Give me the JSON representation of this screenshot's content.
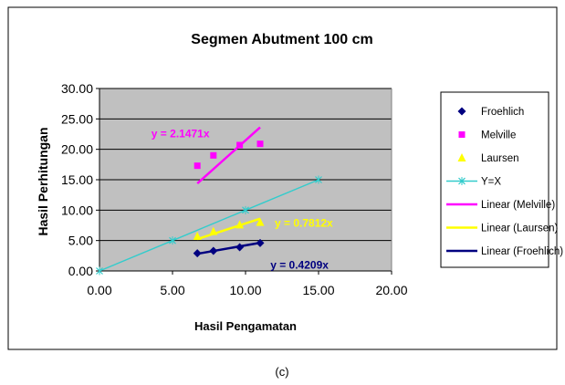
{
  "chart_data": {
    "type": "scatter",
    "title": "Segmen Abutment 100 cm",
    "xlabel": "Hasil Pengamatan",
    "ylabel": "Hasil Perhitungan",
    "xlim": [
      0,
      20
    ],
    "ylim": [
      0,
      30
    ],
    "x_ticks": [
      "0.00",
      "5.00",
      "10.00",
      "15.00",
      "20.00"
    ],
    "y_ticks": [
      "0.00",
      "5.00",
      "10.00",
      "15.00",
      "20.00",
      "25.00",
      "30.00"
    ],
    "grid": true,
    "legend_position": "right",
    "caption": "(c)",
    "colors": {
      "plot_background": "#c0c0c0",
      "froehlich": "#000080",
      "melville": "#ff00ff",
      "laursen": "#ffff00",
      "yx": "#33cccc"
    },
    "series": [
      {
        "name": "Froehlich",
        "kind": "points",
        "marker": "diamond",
        "color": "#000080",
        "x": [
          6.7,
          7.8,
          9.6,
          11.0
        ],
        "y": [
          2.9,
          3.3,
          3.9,
          4.6
        ]
      },
      {
        "name": "Melville",
        "kind": "points",
        "marker": "square",
        "color": "#ff00ff",
        "x": [
          6.7,
          7.8,
          9.6,
          11.0
        ],
        "y": [
          17.3,
          19.0,
          20.7,
          20.9
        ]
      },
      {
        "name": "Laursen",
        "kind": "points",
        "marker": "triangle",
        "color": "#ffff00",
        "x": [
          6.7,
          7.8,
          9.6,
          11.0
        ],
        "y": [
          5.7,
          6.5,
          7.6,
          8.0
        ]
      },
      {
        "name": "Y=X",
        "kind": "line",
        "marker": "x",
        "color": "#33cccc",
        "x": [
          0,
          5,
          10,
          15
        ],
        "y": [
          0,
          5,
          10,
          15
        ]
      },
      {
        "name": "Linear (Melville)",
        "kind": "trend",
        "slope": 2.1471,
        "color": "#ff00ff",
        "x_range": [
          6.7,
          11.0
        ]
      },
      {
        "name": "Linear (Laursen)",
        "kind": "trend",
        "slope": 0.7812,
        "color": "#ffff00",
        "x_range": [
          6.7,
          11.0
        ]
      },
      {
        "name": "Linear (Froehlich)",
        "kind": "trend",
        "slope": 0.4209,
        "color": "#000080",
        "x_range": [
          6.7,
          11.0
        ]
      }
    ],
    "annotations": [
      {
        "text": "y = 2.1471x",
        "color": "#ff00ff"
      },
      {
        "text": "y = 0.7812x",
        "color": "#ffff00"
      },
      {
        "text": "y = 0.4209x",
        "color": "#000080"
      }
    ]
  }
}
